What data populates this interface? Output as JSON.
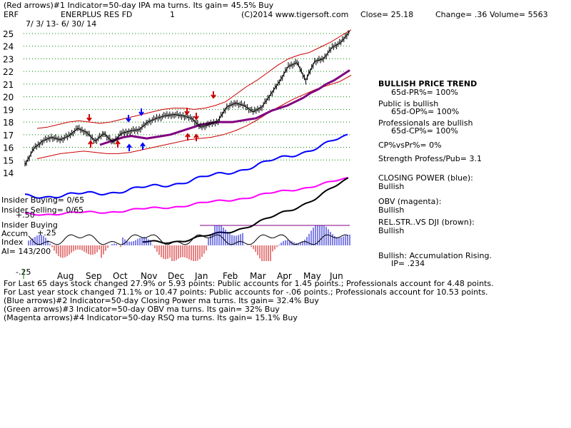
{
  "header": {
    "line1": "(Red arrows)#1 Indicator=50-day IPA ma turns. Its gain= 45.5% Buy",
    "ticker": "ERF",
    "company": "ENERPLUS RES FD",
    "panel_num": "1",
    "copyright": "(C)2014 www.tigersoft.com",
    "close": "Close=  25.18",
    "change": "Change= .36",
    "volume": "Volume= 5563",
    "date_range": "7/ 3/ 13- 6/ 30/ 14"
  },
  "chart_data": {
    "type": "line",
    "title": "ENERPLUS RES FD",
    "ylim": [
      13.5,
      25.5
    ],
    "y_ticks": [
      25,
      24,
      23,
      22,
      21,
      20,
      19,
      18,
      17,
      16,
      15,
      14
    ],
    "x_labels": [
      "Aug",
      "Sep",
      "Oct",
      "Nov",
      "Dec",
      "Jan",
      "Feb",
      "Mar",
      "Apr",
      "May",
      "Jun"
    ],
    "price": [
      14.6,
      15.9,
      16.5,
      16.8,
      16.6,
      16.9,
      17.5,
      17.2,
      16.5,
      17.1,
      16.4,
      17.1,
      17.3,
      17.4,
      18.0,
      18.3,
      18.5,
      18.6,
      18.5,
      18.3,
      17.6,
      17.8,
      18.1,
      19.2,
      19.5,
      19.3,
      18.8,
      19.2,
      20.2,
      21.2,
      22.4,
      22.7,
      21.3,
      22.8,
      23.0,
      23.9,
      24.3,
      25.18
    ],
    "ma50": [
      16.2,
      16.4,
      16.6,
      16.8,
      16.9,
      16.8,
      16.7,
      16.8,
      16.9,
      17.0,
      17.2,
      17.4,
      17.6,
      17.8,
      17.9,
      18.0,
      18.0,
      18.0,
      18.1,
      18.2,
      18.3,
      18.6,
      18.9,
      19.1,
      19.3,
      19.6,
      19.9,
      20.3,
      20.6,
      21.0,
      21.3,
      21.7,
      22.1
    ],
    "band_upper": [
      17.5,
      17.6,
      17.8,
      18.0,
      18.1,
      18.0,
      17.9,
      18.0,
      18.2,
      18.4,
      18.6,
      18.8,
      19.0,
      19.1,
      19.1,
      19.0,
      19.1,
      19.3,
      19.6,
      20.2,
      20.8,
      21.3,
      21.9,
      22.5,
      23.0,
      23.3,
      23.5,
      23.9,
      24.3,
      24.8,
      25.3
    ],
    "band_lower": [
      15.1,
      15.3,
      15.5,
      15.6,
      15.7,
      15.6,
      15.5,
      15.5,
      15.6,
      15.8,
      16.0,
      16.2,
      16.4,
      16.6,
      16.7,
      16.8,
      17.0,
      17.3,
      17.7,
      18.2,
      18.8,
      19.3,
      19.8,
      20.2,
      20.6,
      20.9,
      21.2,
      21.7
    ],
    "indicators": {
      "closing_power": "blue",
      "obv": "magenta",
      "rel_strength_vs_dji": "brown",
      "accumulation_index": "blue/red histogram"
    }
  },
  "left_labels": {
    "insider_buying": "Insider Buying= 0/65",
    "insider_selling": "Insider Selling= 0/65",
    "plus50": "+.50",
    "insider_buying2": "Insider Buying",
    "accum": "Accum",
    "plus25": "+.25",
    "index": "Index",
    "ai": "AI= 143/200",
    "minus25": "-.25"
  },
  "right_panel": {
    "trend_title": "BULLISH PRICE TREND",
    "pr_pct": "65d-PR%= 100%",
    "public_title": "Public is bullish",
    "op_pct": "65d-OP%= 100%",
    "pros_title": "Professionals are bullish",
    "cp_pct": "65d-CP%= 100%",
    "cp_vs_pr": "CP%vsPr%=  0%",
    "strength": "Strength Profess/Pub= 3.1",
    "closing_power_title": "CLOSING POWER (blue):",
    "closing_power_value": "Bullish",
    "obv_title": "OBV (magenta):",
    "obv_value": "Bullish",
    "rel_title": "REL.STR..VS DJI (brown):",
    "rel_value": "Bullish",
    "accum_title": "Bullish: Accumulation Rising.",
    "ip": "IP=  .234"
  },
  "footer": {
    "line1": "For Last 65 days stock changed  27.9% or  5.93 points:  Public accounts for  1.45 points.;  Professionals account for  4.48 points.",
    "line2": "For Last year stock changed  71.1% or  10.47 points:  Public accounts for -.06 points.;  Professionals account for  10.53 points.",
    "line3": "(Blue arrows)#2 Indicator=50-day Closing Power ma turns. Its gain= 32.4% Buy",
    "line4": "(Green arrows)#3 Indicator=50-day OBV ma turns. Its gain= 32% Buy",
    "line5": "(Magenta arrows)#4 Indicator=50-day RSQ ma turns. Its gain= 15.1% Buy"
  },
  "colors": {
    "price": "#000000",
    "ma": "#800080",
    "band": "#cc0000",
    "grid": "#008000",
    "closing_power": "#0000ff",
    "obv": "#ff00ff",
    "rel_str": "#b03030",
    "accum_pos": "#0000cc",
    "accum_neg": "#cc0000"
  }
}
